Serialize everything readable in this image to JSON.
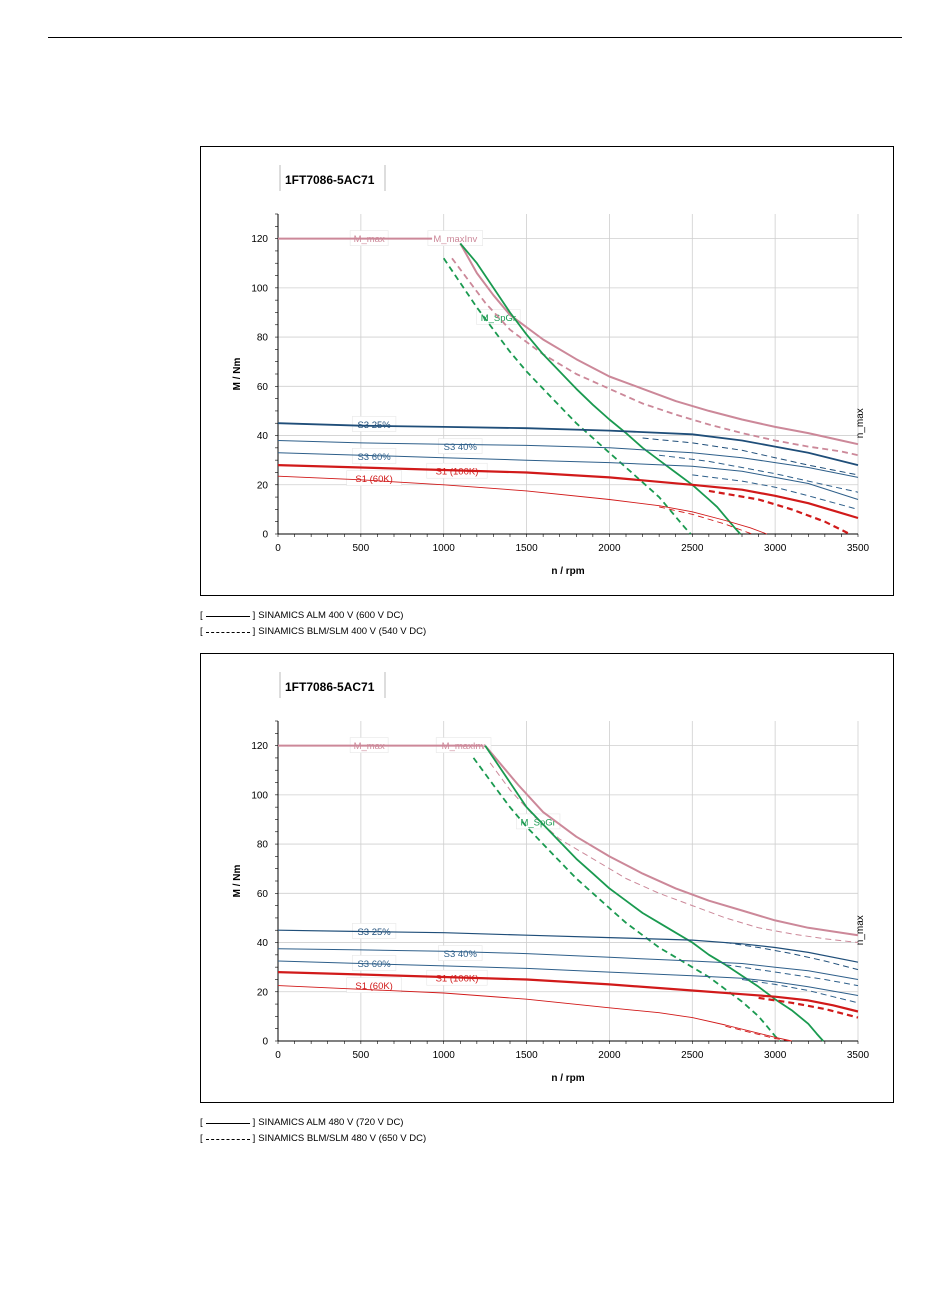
{
  "chart_data": [
    {
      "type": "line",
      "title": "1FT7086-5AC71",
      "xlabel": "n / rpm",
      "ylabel": "M / Nm",
      "xlim": [
        0,
        3500
      ],
      "ylim": [
        0,
        130
      ],
      "xticks": [
        0,
        500,
        1000,
        1500,
        2000,
        2500,
        3000,
        3500
      ],
      "yticks": [
        0,
        20,
        40,
        60,
        80,
        100,
        120
      ],
      "grid": true,
      "n_max_label": "n_max",
      "series": [
        {
          "name": "M_max",
          "color": "#cc8899",
          "width": 2,
          "dash": false,
          "x": [
            0,
            930
          ],
          "y": [
            120,
            120
          ]
        },
        {
          "name": "M_maxInv",
          "color": "#cc8899",
          "width": 2,
          "dash": false,
          "x": [
            1100,
            1200,
            1300,
            1400,
            1600,
            1800,
            2000,
            2200,
            2400,
            2600,
            2800,
            3000,
            3200,
            3400,
            3500
          ],
          "y": [
            118,
            106,
            97,
            89,
            79,
            71,
            64,
            59,
            54,
            50,
            46.5,
            43.5,
            41,
            38,
            36.5
          ]
        },
        {
          "x": [
            1050,
            1150,
            1250,
            1400,
            1600,
            1800,
            2000,
            2200,
            2400,
            2600,
            2800,
            3000,
            3200,
            3400,
            3500
          ],
          "y": [
            112,
            103,
            94,
            83,
            73,
            65,
            59,
            53,
            48.5,
            44.5,
            41,
            38,
            35.5,
            33.5,
            32
          ],
          "color": "#cc8899",
          "width": 1.8,
          "dash": true
        },
        {
          "name": "M_SpGr",
          "color": "#1a9a50",
          "width": 1.8,
          "dash": false,
          "x": [
            1100,
            1200,
            1300,
            1400,
            1500,
            1600,
            1700,
            1800,
            1900,
            2000,
            2100,
            2200,
            2300,
            2400,
            2500,
            2600,
            2650,
            2700,
            2750,
            2790
          ],
          "y": [
            118,
            110,
            100,
            90,
            81,
            73,
            66,
            59,
            52.5,
            46.5,
            41,
            35,
            30,
            25,
            20,
            14,
            11,
            7,
            3,
            0
          ]
        },
        {
          "x": [
            1000,
            1100,
            1200,
            1300,
            1400,
            1500,
            1600,
            1700,
            1800,
            1900,
            2000,
            2100,
            2200,
            2300,
            2350,
            2400,
            2450,
            2490
          ],
          "y": [
            112,
            102,
            92,
            83,
            74,
            66,
            59,
            52,
            45,
            39,
            33,
            27,
            21,
            15,
            11,
            7,
            3,
            0
          ],
          "color": "#1a9a50",
          "width": 1.8,
          "dash": true
        },
        {
          "name": "S3 25%",
          "color": "#1f4e79",
          "width": 1.8,
          "dash": false,
          "x": [
            0,
            500,
            1000,
            1500,
            2000,
            2500,
            2800,
            3000,
            3200,
            3500
          ],
          "y": [
            45,
            44,
            43.5,
            43,
            42,
            40.5,
            38,
            35.5,
            33,
            28
          ]
        },
        {
          "x": [
            2200,
            2500,
            2800,
            3000,
            3200,
            3500
          ],
          "y": [
            39,
            37,
            34,
            31,
            28,
            24
          ],
          "color": "#1f4e79",
          "width": 1,
          "dash": true
        },
        {
          "name": "S3 40%",
          "color": "#2e5f8a",
          "width": 1,
          "dash": false,
          "x": [
            0,
            500,
            1000,
            1500,
            2000,
            2500,
            2800,
            3000,
            3200,
            3500
          ],
          "y": [
            38,
            37,
            36.5,
            36,
            35,
            33,
            31,
            29,
            27,
            23
          ]
        },
        {
          "x": [
            2300,
            2600,
            2800,
            3000,
            3200,
            3500
          ],
          "y": [
            32,
            29.5,
            27,
            24.5,
            21.5,
            17
          ]
        },
        {
          "name": "S3 60%",
          "color": "#2e5f8a",
          "width": 1,
          "dash": false,
          "x": [
            0,
            500,
            1000,
            1500,
            2000,
            2500,
            2800,
            3000,
            3200,
            3500
          ],
          "y": [
            33,
            32,
            31,
            30,
            29,
            27.5,
            25.5,
            23,
            20.5,
            14
          ]
        },
        {
          "x": [
            2500,
            2800,
            3000,
            3200,
            3500
          ],
          "y": [
            24,
            21.5,
            19,
            15.5,
            10
          ]
        },
        {
          "name": "S1 (100K)",
          "color": "#d11a1a",
          "width": 2.2,
          "dash": false,
          "x": [
            0,
            500,
            1000,
            1500,
            2000,
            2500,
            2800,
            3000,
            3200,
            3350,
            3500
          ],
          "y": [
            28,
            27,
            26,
            25,
            23,
            20,
            18,
            15.5,
            12.5,
            9.5,
            6.5
          ]
        },
        {
          "x": [
            2600,
            2900,
            3100,
            3300,
            3450
          ],
          "y": [
            17.5,
            14,
            10,
            5,
            0
          ],
          "color": "#d11a1a",
          "width": 2.2,
          "dash": true
        },
        {
          "name": "S1 (60K)",
          "color": "#d11a1a",
          "width": 0.9,
          "dash": false,
          "x": [
            0,
            500,
            1000,
            1500,
            2000,
            2300,
            2500,
            2700,
            2850,
            2950
          ],
          "y": [
            23.5,
            22,
            20,
            17.5,
            14,
            11.5,
            9,
            5.5,
            2.5,
            0
          ]
        },
        {
          "x": [
            2300,
            2500,
            2700,
            2860
          ],
          "y": [
            11,
            8,
            4,
            0
          ],
          "color": "#d11a1a",
          "width": 0.9,
          "dash": true
        }
      ],
      "legend": [
        {
          "text": "SINAMICS ALM 400 V (600 V DC)",
          "style": "solid"
        },
        {
          "text": "SINAMICS BLM/SLM 400 V (540 V DC)",
          "style": "dashed"
        }
      ]
    },
    {
      "type": "line",
      "title": "1FT7086-5AC71",
      "xlabel": "n / rpm",
      "ylabel": "M / Nm",
      "xlim": [
        0,
        3500
      ],
      "ylim": [
        0,
        130
      ],
      "xticks": [
        0,
        500,
        1000,
        1500,
        2000,
        2500,
        3000,
        3500
      ],
      "yticks": [
        0,
        20,
        40,
        60,
        80,
        100,
        120
      ],
      "grid": true,
      "n_max_label": "n_max",
      "series": [
        {
          "name": "M_max",
          "color": "#cc8899",
          "width": 2,
          "dash": false,
          "x": [
            0,
            1240
          ],
          "y": [
            120,
            120
          ]
        },
        {
          "name": "M_maxInv",
          "color": "#cc8899",
          "width": 2,
          "dash": false,
          "x": [
            1250,
            1350,
            1450,
            1600,
            1800,
            2000,
            2200,
            2400,
            2600,
            2800,
            3000,
            3200,
            3400,
            3500
          ],
          "y": [
            120,
            112,
            104,
            93,
            83,
            75,
            68,
            62,
            57,
            53,
            49,
            46,
            44,
            43
          ]
        },
        {
          "x": [
            1280,
            1400,
            1550,
            1700,
            1900,
            2100,
            2300,
            2500,
            2700,
            2900,
            3100,
            3300,
            3500
          ],
          "y": [
            113,
            102,
            91,
            82,
            74,
            66,
            60,
            55,
            50,
            46,
            43.5,
            41.5,
            40
          ]
        },
        {
          "name": "M_SpGr",
          "color": "#1a9a50",
          "width": 1.8,
          "dash": false,
          "x": [
            1250,
            1400,
            1500,
            1600,
            1700,
            1800,
            1900,
            2000,
            2100,
            2200,
            2300,
            2400,
            2500,
            2600,
            2700,
            2800,
            2900,
            3000,
            3100,
            3200,
            3250,
            3290
          ],
          "y": [
            120,
            105,
            95,
            88,
            81,
            74,
            68,
            62,
            57,
            52,
            48,
            44,
            40,
            35,
            31,
            26.5,
            22,
            17,
            12.5,
            7,
            3,
            0
          ]
        },
        {
          "x": [
            1180,
            1300,
            1400,
            1500,
            1600,
            1700,
            1800,
            1900,
            2000,
            2100,
            2200,
            2300,
            2400,
            2500,
            2600,
            2700,
            2800,
            2900,
            2950,
            3000,
            3030
          ],
          "y": [
            115,
            104,
            95,
            87,
            80,
            73,
            66,
            60,
            54,
            48,
            43,
            38,
            34,
            30,
            26,
            21,
            16,
            10,
            6,
            2,
            0
          ],
          "color": "#1a9a50",
          "width": 1.8,
          "dash": true
        },
        {
          "name": "S3 25%",
          "color": "#1f4e79",
          "width": 1.2,
          "dash": false,
          "x": [
            0,
            500,
            1000,
            1500,
            2000,
            2500,
            2800,
            3000,
            3200,
            3500
          ],
          "y": [
            45,
            44.5,
            44,
            43,
            42,
            41,
            39.5,
            38,
            36,
            32
          ]
        },
        {
          "x": [
            2700,
            2900,
            3100,
            3300,
            3500
          ],
          "y": [
            40,
            38,
            35.5,
            32.5,
            29
          ],
          "color": "#1f4e79",
          "width": 1,
          "dash": true
        },
        {
          "name": "S3 40%",
          "color": "#2e5f8a",
          "width": 1,
          "dash": false,
          "x": [
            0,
            500,
            1000,
            1500,
            2000,
            2500,
            2800,
            3000,
            3200,
            3500
          ],
          "y": [
            37.5,
            37,
            36.5,
            35.5,
            34,
            32.5,
            31.5,
            30,
            28.5,
            25
          ]
        },
        {
          "x": [
            2700,
            2900,
            3100,
            3300,
            3500
          ],
          "y": [
            31,
            29,
            27,
            25,
            22.5
          ],
          "color": "#2e5f8a",
          "width": 1,
          "dash": true
        },
        {
          "name": "S3 60%",
          "color": "#2e5f8a",
          "width": 1,
          "dash": false,
          "x": [
            0,
            500,
            1000,
            1500,
            2000,
            2500,
            2800,
            3000,
            3200,
            3500
          ],
          "y": [
            32.5,
            31.5,
            30.5,
            29.5,
            28,
            26.5,
            25.5,
            24,
            22,
            18.5
          ]
        },
        {
          "x": [
            2800,
            3000,
            3200,
            3350,
            3500
          ],
          "y": [
            25,
            23,
            20.5,
            18,
            15.5
          ],
          "color": "#2e5f8a",
          "width": 1,
          "dash": true
        },
        {
          "name": "S1 (100K)",
          "color": "#d11a1a",
          "width": 2.2,
          "dash": false,
          "x": [
            0,
            500,
            1000,
            1500,
            2000,
            2500,
            2800,
            3000,
            3200,
            3350,
            3500
          ],
          "y": [
            28,
            27,
            26,
            25,
            23,
            20.5,
            19,
            18,
            16.5,
            14.5,
            12
          ]
        },
        {
          "x": [
            2900,
            3100,
            3300,
            3500
          ],
          "y": [
            17.5,
            15.5,
            13,
            9.5
          ],
          "color": "#d11a1a",
          "width": 2.2,
          "dash": true
        },
        {
          "name": "S1 (60K)",
          "color": "#d11a1a",
          "width": 0.9,
          "dash": false,
          "x": [
            0,
            500,
            1000,
            1500,
            2000,
            2300,
            2500,
            2700,
            2850,
            3000,
            3100
          ],
          "y": [
            22.5,
            21,
            19.5,
            17,
            13.5,
            11.5,
            9.5,
            6.5,
            4,
            1.5,
            0
          ]
        },
        {
          "x": [
            2700,
            2850,
            3000,
            3090
          ],
          "y": [
            6,
            3.5,
            1,
            0
          ],
          "color": "#d11a1a",
          "width": 0.9,
          "dash": true
        }
      ],
      "legend": [
        {
          "text": "SINAMICS ALM 480 V (720 V DC)",
          "style": "solid"
        },
        {
          "text": "SINAMICS BLM/SLM 480 V (650 V DC)",
          "style": "dashed"
        }
      ]
    }
  ]
}
